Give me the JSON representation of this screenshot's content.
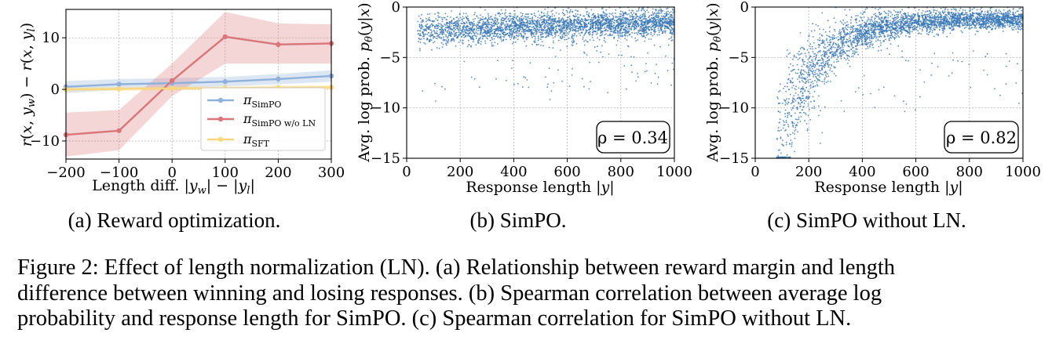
{
  "chart_data": [
    {
      "type": "line",
      "id": "a",
      "subcaption": "(a) Reward optimization.",
      "xlabel": "Length diff. |y_w| − |y_l|",
      "ylabel": "r(x, y_w) − r(x, y_l)",
      "xlim": [
        -200,
        300
      ],
      "ylim": [
        -13.5,
        15.5
      ],
      "xticks": [
        -200,
        -100,
        0,
        100,
        200,
        300
      ],
      "xtick_labels": [
        "−200",
        "−100",
        "0",
        "100",
        "200",
        "300"
      ],
      "yticks": [
        -10,
        0,
        10
      ],
      "ytick_labels": [
        "−10",
        "0",
        "10"
      ],
      "grid": true,
      "legend_position": "bottom-right",
      "series": [
        {
          "name": "SimPO",
          "legend": "π_SimPO",
          "color": "#8fb1dc",
          "x": [
            -200,
            -100,
            0,
            100,
            200,
            300
          ],
          "y": [
            0.5,
            1.0,
            1.2,
            1.5,
            2.0,
            2.6
          ],
          "band_low": [
            -0.7,
            -0.1,
            0.2,
            0.6,
            1.0,
            1.5
          ],
          "band_high": [
            1.6,
            2.0,
            2.2,
            2.4,
            3.0,
            3.7
          ]
        },
        {
          "name": "SimPO w/o LN",
          "legend": "π_SimPO w/o LN",
          "color": "#d9767a",
          "x": [
            -200,
            -100,
            0,
            100,
            200,
            300
          ],
          "y": [
            -8.8,
            -8.0,
            1.7,
            10.2,
            8.7,
            8.9
          ],
          "band_low": [
            -13.0,
            -11.8,
            -1.3,
            5.0,
            5.0,
            5.0
          ],
          "band_high": [
            -4.5,
            -4.0,
            5.0,
            15.0,
            12.8,
            12.6
          ]
        },
        {
          "name": "SFT",
          "legend": "π_SFT",
          "color": "#f8d77d",
          "x": [
            -200,
            -100,
            0,
            100,
            200,
            300
          ],
          "y": [
            0.0,
            0.1,
            0.2,
            0.25,
            0.35,
            0.4
          ],
          "band_low": [
            -0.4,
            -0.3,
            -0.2,
            -0.15,
            -0.05,
            0.0
          ],
          "band_high": [
            0.4,
            0.5,
            0.6,
            0.65,
            0.75,
            0.8
          ]
        }
      ]
    },
    {
      "type": "scatter",
      "id": "b",
      "subcaption": "(b) SimPO.",
      "xlabel": "Response length |y|",
      "ylabel": "Avg. log prob. p_θ(y|x)",
      "xlim": [
        0,
        1000
      ],
      "ylim": [
        -15,
        0
      ],
      "xticks": [
        0,
        200,
        400,
        600,
        800,
        1000
      ],
      "xtick_labels": [
        "0",
        "200",
        "400",
        "600",
        "800",
        "1000"
      ],
      "yticks": [
        -15,
        -10,
        -5,
        0
      ],
      "ytick_labels": [
        "−15",
        "−10",
        "−5",
        "0"
      ],
      "grid": true,
      "color": "#3a78b8",
      "annotation": "ρ = 0.34",
      "point_count": 3200,
      "distribution": {
        "x_range": [
          40,
          1000
        ],
        "trend": "logprob ≈ −2.4 + 0.9·(x/1000), roughly flat",
        "spread": 0.7,
        "outliers_down_to": -9
      }
    },
    {
      "type": "scatter",
      "id": "c",
      "subcaption": "(c) SimPO without LN.",
      "xlabel": "Response length |y|",
      "ylabel": "Avg. log prob. p_θ(y|x)",
      "xlim": [
        0,
        1000
      ],
      "ylim": [
        -15,
        0
      ],
      "xticks": [
        0,
        200,
        400,
        600,
        800,
        1000
      ],
      "xtick_labels": [
        "0",
        "200",
        "400",
        "600",
        "800",
        "1000"
      ],
      "yticks": [
        -15,
        -10,
        -5,
        0
      ],
      "ytick_labels": [
        "−15",
        "−10",
        "−5",
        "0"
      ],
      "grid": true,
      "color": "#3a78b8",
      "annotation": "ρ = 0.82",
      "point_count": 3200,
      "distribution": {
        "x_range": [
          80,
          1000
        ],
        "trend": "logprob rises steeply from about −14 at 100 to about −2 at 600, then −1.2 at 1000",
        "spread": "large at short lengths, ~0.5 at long lengths"
      }
    }
  ],
  "figure_caption": [
    "Figure 2: Effect of length normalization (LN). (a) Relationship between reward margin and length",
    "difference between winning and losing responses. (b) Spearman correlation between average log",
    "probability and response length for SimPO. (c) Spearman correlation for SimPO without LN."
  ]
}
